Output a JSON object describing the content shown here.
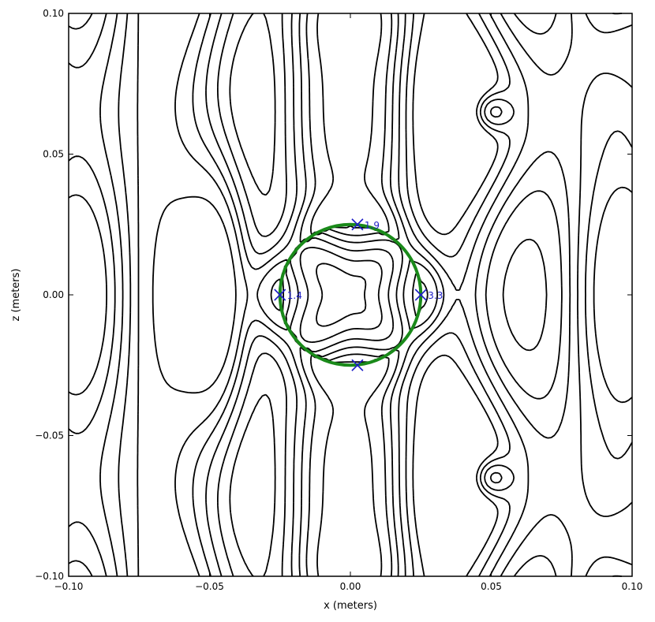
{
  "chart_data": {
    "type": "contour",
    "title": "",
    "xlabel": "x (meters)",
    "ylabel": "z (meters)",
    "xlim": [
      -0.1,
      0.1
    ],
    "ylim": [
      -0.1,
      0.1
    ],
    "xticks": [
      {
        "value": -0.1,
        "label": "−0.10"
      },
      {
        "value": -0.05,
        "label": "−0.05"
      },
      {
        "value": 0.0,
        "label": "0.00"
      },
      {
        "value": 0.05,
        "label": "0.05"
      },
      {
        "value": 0.1,
        "label": "0.10"
      }
    ],
    "yticks": [
      {
        "value": -0.1,
        "label": "−0.10"
      },
      {
        "value": -0.05,
        "label": "−0.05"
      },
      {
        "value": 0.0,
        "label": "0.00"
      },
      {
        "value": 0.05,
        "label": "0.05"
      },
      {
        "value": 0.1,
        "label": "0.10"
      }
    ],
    "grid": false,
    "colors": {
      "positive": "#000000",
      "negative": "#000000",
      "circle": "#1a8a1a",
      "marker": "#1f1fc8"
    },
    "circle": {
      "center": [
        0.0,
        0.0
      ],
      "radius": 0.025
    },
    "markers": [
      {
        "x": 0.0025,
        "y": 0.025,
        "label": "1.9"
      },
      {
        "x": -0.025,
        "y": 0.0,
        "label": "1.4"
      },
      {
        "x": 0.025,
        "y": 0.0,
        "label": "3.3"
      },
      {
        "x": 0.0025,
        "y": -0.025,
        "label": ""
      }
    ]
  }
}
